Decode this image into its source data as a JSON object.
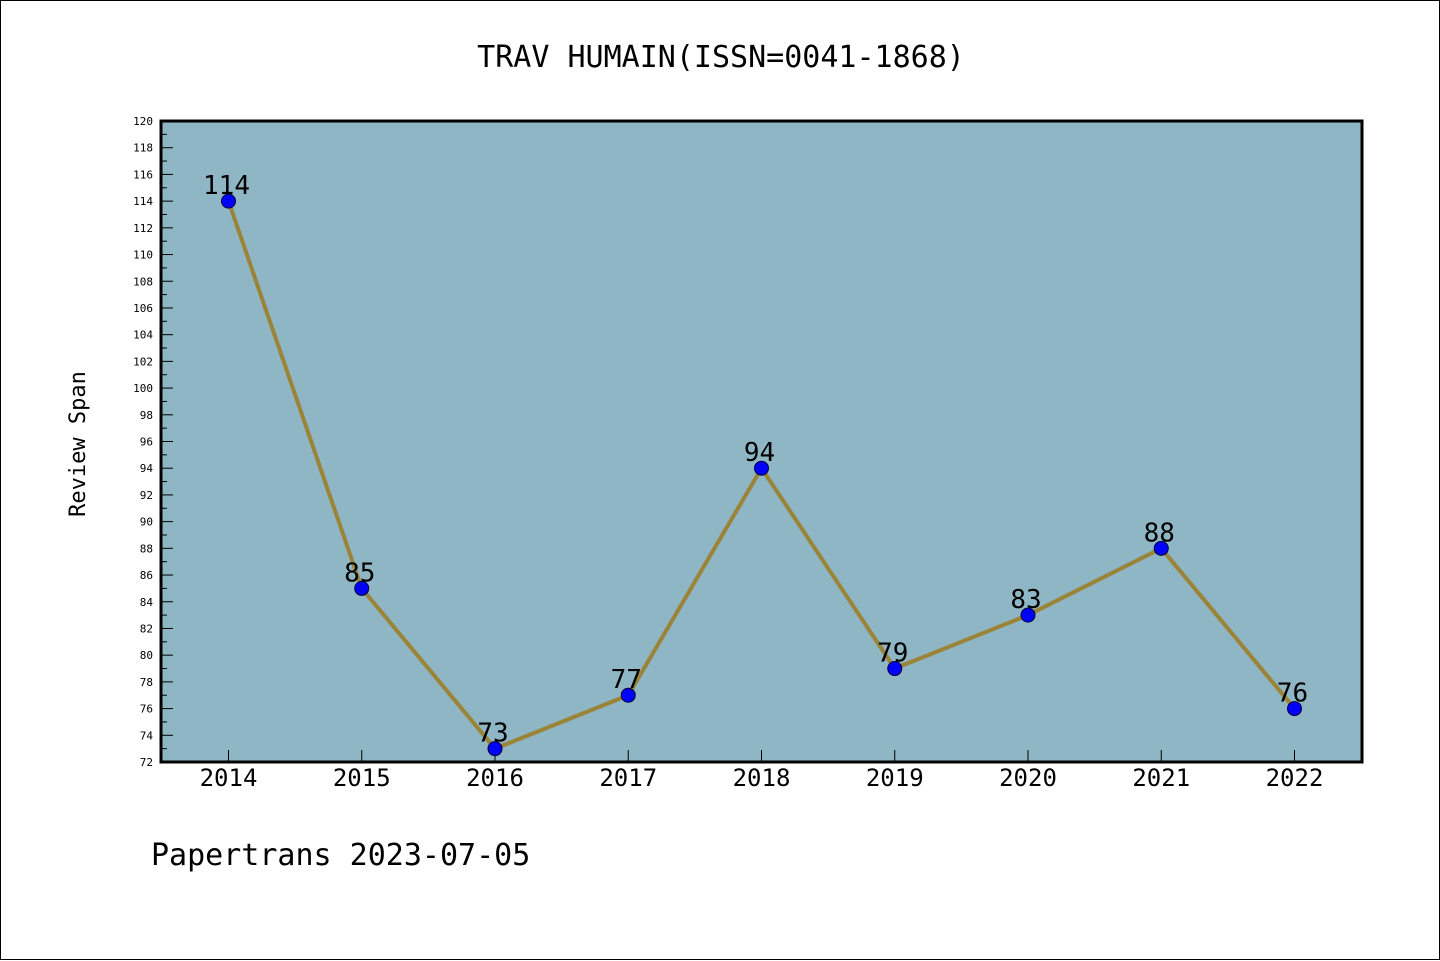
{
  "chart_data": {
    "type": "line",
    "title": "TRAV HUMAIN(ISSN=0041-1868)",
    "xlabel": "",
    "ylabel": "Review Span",
    "categories": [
      "2014",
      "2015",
      "2016",
      "2017",
      "2018",
      "2019",
      "2020",
      "2021",
      "2022"
    ],
    "series": [
      {
        "values": [
          114,
          85,
          73,
          77,
          94,
          79,
          83,
          88,
          76
        ]
      }
    ],
    "ylim": [
      72,
      120
    ],
    "y_ticks": [
      72,
      74,
      76,
      78,
      80,
      82,
      84,
      86,
      88,
      90,
      92,
      94,
      96,
      98,
      100,
      102,
      104,
      106,
      108,
      110,
      112,
      114,
      116,
      118,
      120
    ],
    "grid": false,
    "legend": "none",
    "data_labels": true,
    "colors": {
      "plot_background": "#8eb6c4",
      "line": "#9b8338",
      "marker": "#0000ff"
    }
  },
  "footer": "Papertrans 2023-07-05"
}
